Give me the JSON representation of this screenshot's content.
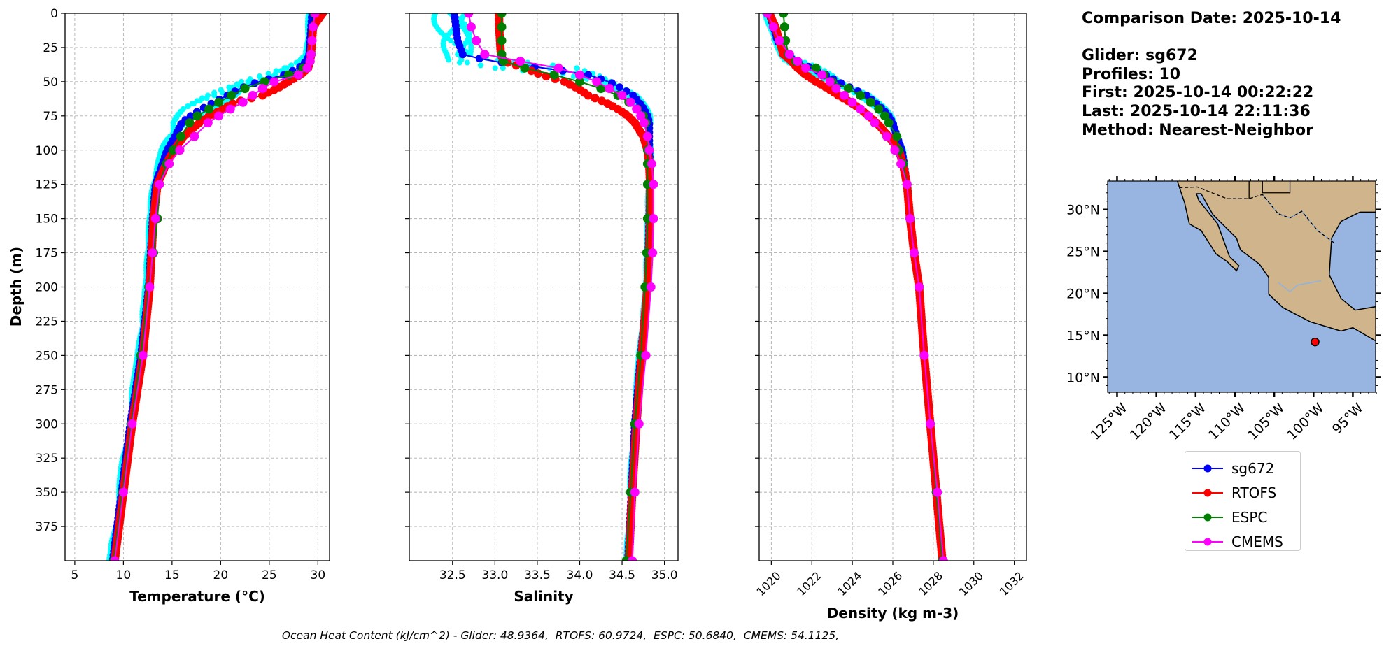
{
  "info": {
    "comparison_date": "Comparison Date: 2025-10-14",
    "glider": "Glider: sg672",
    "profiles": "Profiles: 10",
    "first": "First: 2025-10-14 00:22:22",
    "last": "Last: 2025-10-14 22:11:36",
    "method": "Method: Nearest-Neighbor"
  },
  "footer": {
    "ohc_text": "Ocean Heat Content (kJ/cm^2) - Glider: 48.9364,  RTOFS: 60.9724,  ESPC: 50.6840,  CMEMS: 54.1125,"
  },
  "legend": [
    {
      "label": "sg672",
      "color": "#0000ff"
    },
    {
      "label": "RTOFS",
      "color": "#ff0000"
    },
    {
      "label": "ESPC",
      "color": "#008000"
    },
    {
      "label": "CMEMS",
      "color": "#ff00ff"
    }
  ],
  "glider_profiles_color": "#00ffff",
  "chart_data": [
    {
      "type": "line",
      "title": "",
      "xlabel": "Temperature (°C)",
      "ylabel": "Depth (m)",
      "xlim": [
        4.0,
        31.2
      ],
      "ylim": [
        400,
        0
      ],
      "grid": true,
      "xticks": [
        5,
        10,
        15,
        20,
        25,
        30
      ],
      "xtick_labels": [
        "5",
        "10",
        "15",
        "20",
        "25",
        "30"
      ],
      "yticks": [
        0,
        25,
        50,
        75,
        100,
        125,
        150,
        175,
        200,
        225,
        250,
        275,
        300,
        325,
        350,
        375
      ],
      "ytick_labels": [
        "0",
        "25",
        "50",
        "75",
        "100",
        "125",
        "150",
        "175",
        "200",
        "225",
        "250",
        "275",
        "300",
        "325",
        "350",
        "375"
      ],
      "depth": [
        0,
        10,
        20,
        30,
        35,
        40,
        45,
        50,
        55,
        60,
        65,
        70,
        75,
        80,
        90,
        100,
        110,
        125,
        150,
        175,
        200,
        250,
        300,
        350,
        400
      ],
      "series": [
        {
          "name": "sg672",
          "values": [
            29.4,
            29.3,
            29.2,
            29.1,
            28.8,
            28.0,
            26.5,
            23.9,
            22.0,
            20.7,
            19.3,
            18.0,
            16.9,
            16.0,
            15.3,
            14.5,
            14.0,
            13.3,
            13.0,
            12.8,
            12.6,
            11.8,
            10.7,
            9.8,
            8.9
          ]
        },
        {
          "name": "RTOFS",
          "values": [
            30.5,
            29.5,
            29.4,
            29.3,
            29.2,
            29.0,
            28.2,
            27.0,
            25.8,
            24.3,
            21.5,
            20.2,
            18.9,
            17.8,
            16.2,
            15.2,
            14.4,
            13.5,
            13.1,
            12.9,
            12.7,
            12.0,
            10.9,
            10.0,
            9.1
          ]
        },
        {
          "name": "ESPC",
          "values": [
            29.6,
            29.5,
            29.4,
            29.3,
            29.2,
            28.5,
            27.0,
            24.5,
            22.5,
            21.1,
            19.8,
            18.8,
            17.6,
            16.8,
            15.9,
            15.1,
            14.4,
            13.7,
            13.5,
            13.1,
            12.6,
            11.8,
            10.8,
            9.9,
            9.0
          ]
        },
        {
          "name": "CMEMS",
          "values": [
            29.7,
            29.5,
            29.4,
            29.3,
            29.2,
            28.9,
            28.0,
            25.5,
            24.3,
            23.3,
            22.3,
            21.0,
            19.8,
            18.7,
            17.3,
            15.8,
            14.7,
            13.7,
            13.3,
            13.0,
            12.7,
            12.0,
            10.9,
            10.0,
            9.1
          ]
        }
      ],
      "glider_profiles_spread": [
        0.3,
        0.3,
        0.3,
        0.3,
        0.6,
        1.2,
        1.6,
        1.8,
        1.8,
        1.8,
        1.6,
        1.5,
        1.2,
        1.0,
        0.8,
        0.5,
        0.4,
        0.3,
        0.3,
        0.3,
        0.3,
        0.3,
        0.3,
        0.3,
        0.3
      ]
    },
    {
      "type": "line",
      "title": "",
      "xlabel": "Salinity",
      "ylabel": "",
      "xlim": [
        31.99,
        35.16
      ],
      "ylim": [
        400,
        0
      ],
      "grid": true,
      "xticks": [
        32.5,
        33.0,
        33.5,
        34.0,
        34.5,
        35.0
      ],
      "xtick_labels": [
        "32.5",
        "33.0",
        "33.5",
        "34.0",
        "34.5",
        "35.0"
      ],
      "yticks": [
        0,
        25,
        50,
        75,
        100,
        125,
        150,
        175,
        200,
        225,
        250,
        275,
        300,
        325,
        350,
        375
      ],
      "depth": [
        0,
        10,
        20,
        30,
        35,
        40,
        45,
        50,
        55,
        60,
        65,
        70,
        75,
        80,
        90,
        100,
        110,
        125,
        150,
        175,
        200,
        250,
        300,
        350,
        400
      ],
      "series": [
        {
          "name": "sg672",
          "values": [
            32.52,
            32.54,
            32.56,
            32.62,
            32.95,
            33.6,
            34.1,
            34.35,
            34.5,
            34.63,
            34.7,
            34.76,
            34.8,
            34.82,
            34.82,
            34.82,
            34.83,
            34.83,
            34.82,
            34.81,
            34.8,
            34.72,
            34.65,
            34.61,
            34.57
          ]
        },
        {
          "name": "RTOFS",
          "values": [
            33.05,
            33.05,
            33.06,
            33.07,
            33.1,
            33.35,
            33.55,
            33.82,
            33.98,
            34.1,
            34.3,
            34.45,
            34.57,
            34.65,
            34.75,
            34.8,
            34.82,
            34.83,
            34.83,
            34.82,
            34.8,
            34.73,
            34.67,
            34.62,
            34.58
          ]
        },
        {
          "name": "ESPC",
          "values": [
            33.08,
            33.08,
            33.08,
            33.08,
            33.1,
            33.35,
            33.7,
            34.0,
            34.25,
            34.45,
            34.58,
            34.68,
            34.75,
            34.78,
            34.8,
            34.8,
            34.8,
            34.8,
            34.8,
            34.79,
            34.77,
            34.72,
            34.65,
            34.6,
            34.55
          ]
        },
        {
          "name": "CMEMS",
          "values": [
            32.69,
            32.72,
            32.78,
            32.88,
            33.3,
            33.75,
            34.0,
            34.2,
            34.35,
            34.5,
            34.6,
            34.67,
            34.72,
            34.76,
            34.8,
            34.82,
            34.85,
            34.87,
            34.87,
            34.86,
            34.84,
            34.78,
            34.7,
            34.65,
            34.62
          ]
        }
      ],
      "glider_profiles_spread": [
        0.2,
        0.2,
        0.2,
        0.15,
        0.4,
        0.5,
        0.2,
        0.12,
        0.1,
        0.08,
        0.06,
        0.05,
        0.05,
        0.04,
        0.03,
        0.03,
        0.02,
        0.02,
        0.02,
        0.02,
        0.02,
        0.02,
        0.02,
        0.02,
        0.02
      ]
    },
    {
      "type": "line",
      "title": "",
      "xlabel": "Density (kg m-3)",
      "ylabel": "",
      "xlim": [
        1019.4,
        1032.6
      ],
      "ylim": [
        400,
        0
      ],
      "grid": true,
      "xticks": [
        1020,
        1022,
        1024,
        1026,
        1028,
        1030,
        1032
      ],
      "xtick_labels": [
        "1020",
        "1022",
        "1024",
        "1026",
        "1028",
        "1030",
        "1032"
      ],
      "yticks": [
        0,
        25,
        50,
        75,
        100,
        125,
        150,
        175,
        200,
        225,
        250,
        275,
        300,
        325,
        350,
        375
      ],
      "depth": [
        0,
        10,
        20,
        30,
        35,
        40,
        45,
        50,
        55,
        60,
        65,
        70,
        75,
        80,
        90,
        100,
        110,
        125,
        150,
        175,
        200,
        250,
        300,
        350,
        400
      ],
      "series": [
        {
          "name": "sg672",
          "values": [
            1019.9,
            1020.1,
            1020.3,
            1020.7,
            1021.2,
            1022.0,
            1022.7,
            1023.3,
            1024.0,
            1024.7,
            1025.1,
            1025.5,
            1025.8,
            1026.0,
            1026.2,
            1026.45,
            1026.55,
            1026.7,
            1026.85,
            1027.05,
            1027.3,
            1027.55,
            1027.85,
            1028.15,
            1028.45
          ]
        },
        {
          "name": "RTOFS",
          "values": [
            1019.9,
            1020.2,
            1020.4,
            1020.6,
            1021.0,
            1021.3,
            1021.7,
            1022.2,
            1022.8,
            1023.3,
            1023.9,
            1024.4,
            1024.8,
            1025.2,
            1025.8,
            1026.3,
            1026.5,
            1026.7,
            1026.85,
            1027.05,
            1027.3,
            1027.55,
            1027.85,
            1028.15,
            1028.45
          ]
        },
        {
          "name": "ESPC",
          "values": [
            1020.6,
            1020.65,
            1020.7,
            1020.85,
            1021.2,
            1022.2,
            1022.6,
            1023.0,
            1023.8,
            1024.4,
            1024.9,
            1025.3,
            1025.6,
            1025.8,
            1026.2,
            1026.3,
            1026.5,
            1026.7,
            1026.85,
            1027.05,
            1027.3,
            1027.55,
            1027.85,
            1028.15,
            1028.45
          ]
        },
        {
          "name": "CMEMS",
          "values": [
            1019.8,
            1020.1,
            1020.4,
            1020.9,
            1021.3,
            1021.7,
            1022.5,
            1022.9,
            1023.2,
            1023.6,
            1024.0,
            1024.4,
            1024.8,
            1025.1,
            1025.7,
            1026.1,
            1026.4,
            1026.7,
            1026.85,
            1027.05,
            1027.3,
            1027.55,
            1027.85,
            1028.2,
            1028.5
          ]
        }
      ],
      "glider_profiles_spread": [
        0.2,
        0.15,
        0.15,
        0.2,
        0.4,
        0.5,
        0.5,
        0.4,
        0.35,
        0.3,
        0.25,
        0.2,
        0.2,
        0.15,
        0.12,
        0.1,
        0.08,
        0.05,
        0.05,
        0.05,
        0.05,
        0.05,
        0.05,
        0.05,
        0.05
      ]
    }
  ],
  "map": {
    "lon_range": [
      -126.2,
      -92.1
    ],
    "lat_range": [
      8.2,
      33.4
    ],
    "lon_ticks": [
      -125,
      -120,
      -115,
      -110,
      -105,
      -100,
      -95
    ],
    "lon_tick_labels": [
      "125°W",
      "120°W",
      "115°W",
      "110°W",
      "105°W",
      "100°W",
      "95°W"
    ],
    "lat_ticks": [
      10,
      15,
      20,
      25,
      30
    ],
    "lat_tick_labels": [
      "10°N",
      "15°N",
      "20°N",
      "25°N",
      "30°N"
    ],
    "glider_position": {
      "lon": -99.8,
      "lat": 14.2
    },
    "colors": {
      "ocean": "#97b5e0",
      "land": "#d0b48b",
      "glider": "#ff0000"
    }
  }
}
